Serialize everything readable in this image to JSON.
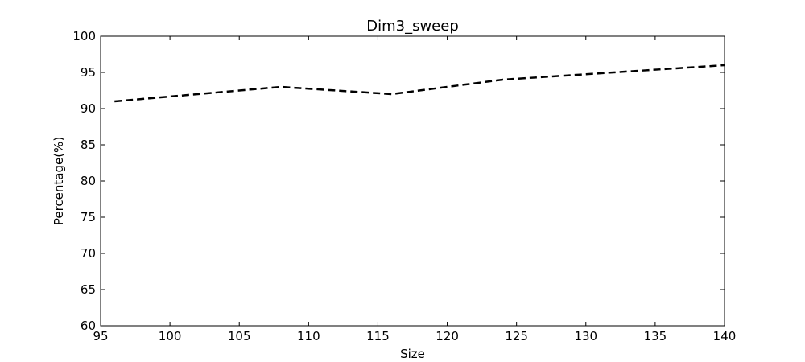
{
  "chart_data": {
    "type": "line",
    "title": "Dim3_sweep",
    "xlabel": "Size",
    "ylabel": "Percentage(%)",
    "xlim": [
      95,
      140
    ],
    "ylim": [
      60,
      100
    ],
    "xticks": [
      95,
      100,
      105,
      110,
      115,
      120,
      125,
      130,
      135,
      140
    ],
    "yticks": [
      60,
      65,
      70,
      75,
      80,
      85,
      90,
      95,
      100
    ],
    "grid": false,
    "series": [
      {
        "color": "#000000",
        "line_style": "dashed",
        "x": [
          96,
          108,
          116,
          124,
          132,
          140
        ],
        "y": [
          91,
          93,
          92,
          94,
          95,
          96
        ]
      }
    ]
  }
}
